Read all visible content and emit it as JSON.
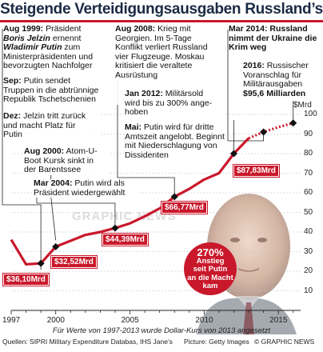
{
  "title": "Steigende Verteidigungsausgaben Russland’s",
  "unit_label": "$Mrd",
  "chart_data": {
    "type": "line",
    "x": [
      1997,
      1998,
      1999,
      2000,
      2001,
      2002,
      2003,
      2004,
      2005,
      2006,
      2007,
      2008,
      2009,
      2010,
      2011,
      2012,
      2013,
      2014,
      2015,
      2016
    ],
    "values": [
      36.1,
      23.5,
      24.0,
      32.5,
      35.5,
      38.5,
      40.0,
      42.0,
      44.4,
      48.0,
      52.0,
      58.0,
      62.0,
      66.77,
      70.0,
      80.0,
      87.83,
      91.0,
      93.5,
      95.6
    ],
    "dotted_from_year": 2013,
    "ylim": [
      0,
      100
    ],
    "yticks": [
      0,
      10,
      20,
      30,
      40,
      50,
      60,
      70,
      80,
      90,
      100
    ],
    "xticks": [
      1997,
      2000,
      2005,
      2010,
      2015
    ],
    "xlim": [
      1997,
      2016.5
    ],
    "color": "#c9182b",
    "grid": true,
    "markers": [
      1999,
      2000,
      2004,
      2008,
      2012,
      2014,
      2016
    ]
  },
  "values_labels": [
    "$36,10Mrd",
    "$32,52Mrd",
    "$44,39Mrd",
    "$66,77Mrd",
    "$87,83Mrd"
  ],
  "callout": {
    "pct": "270%",
    "line1": "Anstieg",
    "line2": "seit Putin",
    "line3": "an die Macht",
    "line4": "kam"
  },
  "annotations": {
    "a1999_year": "Aug 1999:",
    "a1999_t1": "Präsident",
    "a1999_name1": "Boris Jelzin",
    "a1999_t2": "ernennt",
    "a1999_name2": "Wladimir Putin",
    "a1999_t3": "zum",
    "a1999_t4": "Ministerpräsidenten und",
    "a1999_t5": "bevorzugten Nachfolger",
    "sep_year": "Sep:",
    "sep_t1": "Putin sendet",
    "sep_t2": "Truppen in die abtrünnige",
    "sep_t3": "Republik Tschetschenien",
    "dez_year": "Dez:",
    "dez_t1": "Jelzin tritt zurück",
    "dez_t2": "und macht Platz für",
    "dez_t3": "Putin",
    "a2000_year": "Aug 2000:",
    "a2000_t1": "Atom-U-",
    "a2000_t2": "Boot Kursk sinkt in",
    "a2000_t3": "der Barentssee",
    "m2004_year": "Mar 2004:",
    "m2004_t1": "Putin wird als",
    "m2004_t2": "Präsident wiedergewählt",
    "a2008_year": "Aug 2008:",
    "a2008_t1": "Krieg mit",
    "a2008_t2": "Georgien. Im 5-Tage",
    "a2008_t3": "Konflikt verliert Russland",
    "a2008_t4": "vier Flugzeuge. Moskau",
    "a2008_t5": "kritisiert die veraltete",
    "a2008_t6": "Ausrüstung",
    "j2012_year": "Jan 2012:",
    "j2012_t1": "Militärsold",
    "j2012_t2": "wird bis zu 300% ange-",
    "j2012_t3": "hoben",
    "mai_year": "Mai:",
    "mai_t1": "Putin wird für dritte",
    "mai_t2": "Amtszeit angelobt. Beginnt",
    "mai_t3": "mit Niederschlagung von",
    "mai_t4": "Dissidenten",
    "m2014_year": "Mar 2014: Russland",
    "m2014_t1": "nimmt der Ukraine die",
    "m2014_t2": "Krim weg",
    "b2016_year": "2016:",
    "b2016_t1": "Russischer",
    "b2016_t2": "Voranschlag für",
    "b2016_t3": "Militärausgaben",
    "b2016_t4": "$95,6 Milliarden"
  },
  "watermark": "GRAPHIC NEWS",
  "footnote": "Für Werte von 1997-2013 wurde Dollar-Kurs von 2013 angesetzt",
  "source": "Quellen: SIPRI Military Expenditure Databas, IHS Jane’s",
  "picture": "Picture: Getty Images",
  "copyright": "© GRAPHIC NEWS"
}
